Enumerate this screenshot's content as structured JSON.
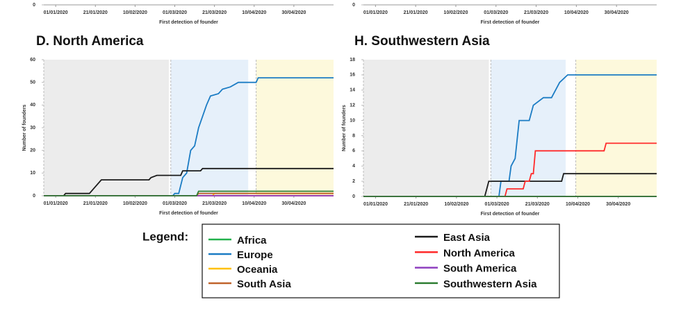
{
  "chart_data": [
    {
      "type": "line",
      "xlabel": "First detection of founder",
      "xlim": [
        "2019-12-26",
        "2020-05-20"
      ],
      "xticks": [
        {
          "value": "2020-01-01",
          "label": "01/01/2020"
        },
        {
          "value": "2020-01-21",
          "label": "21/01/2020"
        },
        {
          "value": "2020-02-10",
          "label": "10/02/2020"
        },
        {
          "value": "2020-03-01",
          "label": "01/03/2020"
        },
        {
          "value": "2020-03-21",
          "label": "21/03/2020"
        },
        {
          "value": "2020-04-10",
          "label": "10/04/2020"
        },
        {
          "value": "2020-04-30",
          "label": "30/04/2020"
        }
      ],
      "yticks": [
        0
      ]
    },
    {
      "type": "line",
      "xlabel": "First detection of founder",
      "xlim": [
        "2019-12-26",
        "2020-05-20"
      ],
      "xticks": [
        {
          "value": "2020-01-01",
          "label": "01/01/2020"
        },
        {
          "value": "2020-01-21",
          "label": "21/01/2020"
        },
        {
          "value": "2020-02-10",
          "label": "10/02/2020"
        },
        {
          "value": "2020-03-01",
          "label": "01/03/2020"
        },
        {
          "value": "2020-03-21",
          "label": "21/03/2020"
        },
        {
          "value": "2020-04-10",
          "label": "10/04/2020"
        },
        {
          "value": "2020-04-30",
          "label": "30/04/2020"
        }
      ],
      "yticks": [
        0
      ]
    },
    {
      "type": "line",
      "title": "D. North America",
      "xlabel": "First detection of founder",
      "ylabel": "Number of founders",
      "xlim": [
        "2019-12-26",
        "2020-05-20"
      ],
      "ylim": [
        0,
        60
      ],
      "xticks": [
        {
          "value": "2020-01-01",
          "label": "01/01/2020"
        },
        {
          "value": "2020-01-21",
          "label": "21/01/2020"
        },
        {
          "value": "2020-02-10",
          "label": "10/02/2020"
        },
        {
          "value": "2020-03-01",
          "label": "01/03/2020"
        },
        {
          "value": "2020-03-21",
          "label": "21/03/2020"
        },
        {
          "value": "2020-04-10",
          "label": "10/04/2020"
        },
        {
          "value": "2020-04-30",
          "label": "30/04/2020"
        }
      ],
      "yticks": [
        0,
        10,
        20,
        30,
        40,
        50,
        60
      ],
      "bands": [
        {
          "start": "2019-12-26",
          "end": "2020-02-27",
          "color": "#ececec"
        },
        {
          "start": "2020-02-28",
          "end": "2020-04-07",
          "color": "#e6f0fa"
        },
        {
          "start": "2020-04-11",
          "end": "2020-05-20",
          "color": "#fdf9dc"
        }
      ],
      "series": [
        {
          "name": "Africa",
          "color": "#22b14c",
          "x": [
            "2019-12-26",
            "2020-05-20"
          ],
          "values": [
            0,
            0
          ]
        },
        {
          "name": "Europe",
          "color": "#1b7cc4",
          "x": [
            "2019-12-26",
            "2020-02-29",
            "2020-03-01",
            "2020-03-03",
            "2020-03-05",
            "2020-03-07",
            "2020-03-09",
            "2020-03-11",
            "2020-03-13",
            "2020-03-15",
            "2020-03-17",
            "2020-03-19",
            "2020-03-23",
            "2020-03-25",
            "2020-03-29",
            "2020-04-02",
            "2020-04-11",
            "2020-04-12",
            "2020-05-20"
          ],
          "values": [
            0,
            0,
            1,
            1,
            8,
            10,
            20,
            22,
            30,
            35,
            40,
            44,
            45,
            47,
            48,
            50,
            50,
            52,
            52
          ]
        },
        {
          "name": "Oceania",
          "color": "#ffc000",
          "x": [
            "2019-12-26",
            "2020-03-20",
            "2020-03-21",
            "2020-05-20"
          ],
          "values": [
            0,
            0,
            1,
            1
          ]
        },
        {
          "name": "South Asia",
          "color": "#c0622b",
          "x": [
            "2019-12-26",
            "2020-03-12",
            "2020-03-13",
            "2020-05-20"
          ],
          "values": [
            0,
            0,
            1,
            1
          ]
        },
        {
          "name": "East Asia",
          "color": "#1a1a1a",
          "x": [
            "2019-12-26",
            "2020-01-05",
            "2020-01-06",
            "2020-01-18",
            "2020-01-20",
            "2020-01-24",
            "2020-02-17",
            "2020-02-18",
            "2020-02-21",
            "2020-03-04",
            "2020-03-05",
            "2020-03-14",
            "2020-03-15",
            "2020-05-20"
          ],
          "values": [
            0,
            0,
            1,
            1,
            3,
            7,
            7,
            8,
            9,
            9,
            11,
            11,
            12,
            12
          ]
        },
        {
          "name": "North America",
          "color": "#ff2a2a",
          "x": [
            "2019-12-26",
            "2020-05-20"
          ],
          "values": [
            0,
            0
          ]
        },
        {
          "name": "South America",
          "color": "#8e3fbf",
          "x": [
            "2019-12-26",
            "2020-05-20"
          ],
          "values": [
            0,
            0
          ]
        },
        {
          "name": "Southwestern Asia",
          "color": "#2e7d32",
          "x": [
            "2019-12-26",
            "2020-03-12",
            "2020-03-13",
            "2020-05-20"
          ],
          "values": [
            0,
            0,
            2,
            2
          ]
        }
      ]
    },
    {
      "type": "line",
      "title": "H. Southwestern Asia",
      "xlabel": "First detection of founder",
      "ylabel": "Number of founders",
      "xlim": [
        "2019-12-26",
        "2020-05-19"
      ],
      "ylim": [
        0,
        18
      ],
      "xticks": [
        {
          "value": "2020-01-01",
          "label": "01/01/2020"
        },
        {
          "value": "2020-01-21",
          "label": "21/01/2020"
        },
        {
          "value": "2020-02-10",
          "label": "10/02/2020"
        },
        {
          "value": "2020-03-01",
          "label": "01/03/2020"
        },
        {
          "value": "2020-03-21",
          "label": "21/03/2020"
        },
        {
          "value": "2020-04-10",
          "label": "10/04/2020"
        },
        {
          "value": "2020-04-30",
          "label": "30/04/2020"
        }
      ],
      "yticks": [
        0,
        2,
        4,
        6,
        8,
        10,
        12,
        14,
        16,
        18
      ],
      "bands": [
        {
          "start": "2019-12-26",
          "end": "2020-02-26",
          "color": "#ececec"
        },
        {
          "start": "2020-02-27",
          "end": "2020-04-04",
          "color": "#e6f0fa"
        },
        {
          "start": "2020-04-09",
          "end": "2020-05-19",
          "color": "#fdf9dc"
        }
      ],
      "series": [
        {
          "name": "Africa",
          "color": "#22b14c",
          "x": [
            "2019-12-26",
            "2020-05-19"
          ],
          "values": [
            0,
            0
          ]
        },
        {
          "name": "Europe",
          "color": "#1b7cc4",
          "x": [
            "2019-12-26",
            "2020-03-02",
            "2020-03-03",
            "2020-03-07",
            "2020-03-08",
            "2020-03-10",
            "2020-03-12",
            "2020-03-17",
            "2020-03-19",
            "2020-03-24",
            "2020-03-28",
            "2020-04-01",
            "2020-04-05",
            "2020-05-19"
          ],
          "values": [
            0,
            0,
            2,
            2,
            4,
            5,
            10,
            10,
            12,
            13,
            13,
            15,
            16,
            16
          ]
        },
        {
          "name": "Oceania",
          "color": "#ffc000",
          "x": [
            "2019-12-26",
            "2020-05-19"
          ],
          "values": [
            0,
            0
          ]
        },
        {
          "name": "South Asia",
          "color": "#c0622b",
          "x": [
            "2019-12-26",
            "2020-05-19"
          ],
          "values": [
            0,
            0
          ]
        },
        {
          "name": "East Asia",
          "color": "#1a1a1a",
          "x": [
            "2019-12-26",
            "2020-02-24",
            "2020-02-26",
            "2020-04-02",
            "2020-04-03",
            "2020-05-19"
          ],
          "values": [
            0,
            0,
            2,
            2,
            3,
            3
          ]
        },
        {
          "name": "North America",
          "color": "#ff2a2a",
          "x": [
            "2019-12-26",
            "2020-03-05",
            "2020-03-06",
            "2020-03-14",
            "2020-03-15",
            "2020-03-17",
            "2020-03-18",
            "2020-03-19",
            "2020-03-20",
            "2020-04-23",
            "2020-04-24",
            "2020-05-19"
          ],
          "values": [
            0,
            0,
            1,
            1,
            2,
            2,
            3,
            3,
            6,
            6,
            7,
            7
          ]
        },
        {
          "name": "South America",
          "color": "#8e3fbf",
          "x": [
            "2019-12-26",
            "2020-05-19"
          ],
          "values": [
            0,
            0
          ]
        },
        {
          "name": "Southwestern Asia",
          "color": "#2e7d32",
          "x": [
            "2019-12-26",
            "2020-05-19"
          ],
          "values": [
            0,
            0
          ]
        }
      ]
    }
  ],
  "legend": {
    "title": "Legend:"
  }
}
